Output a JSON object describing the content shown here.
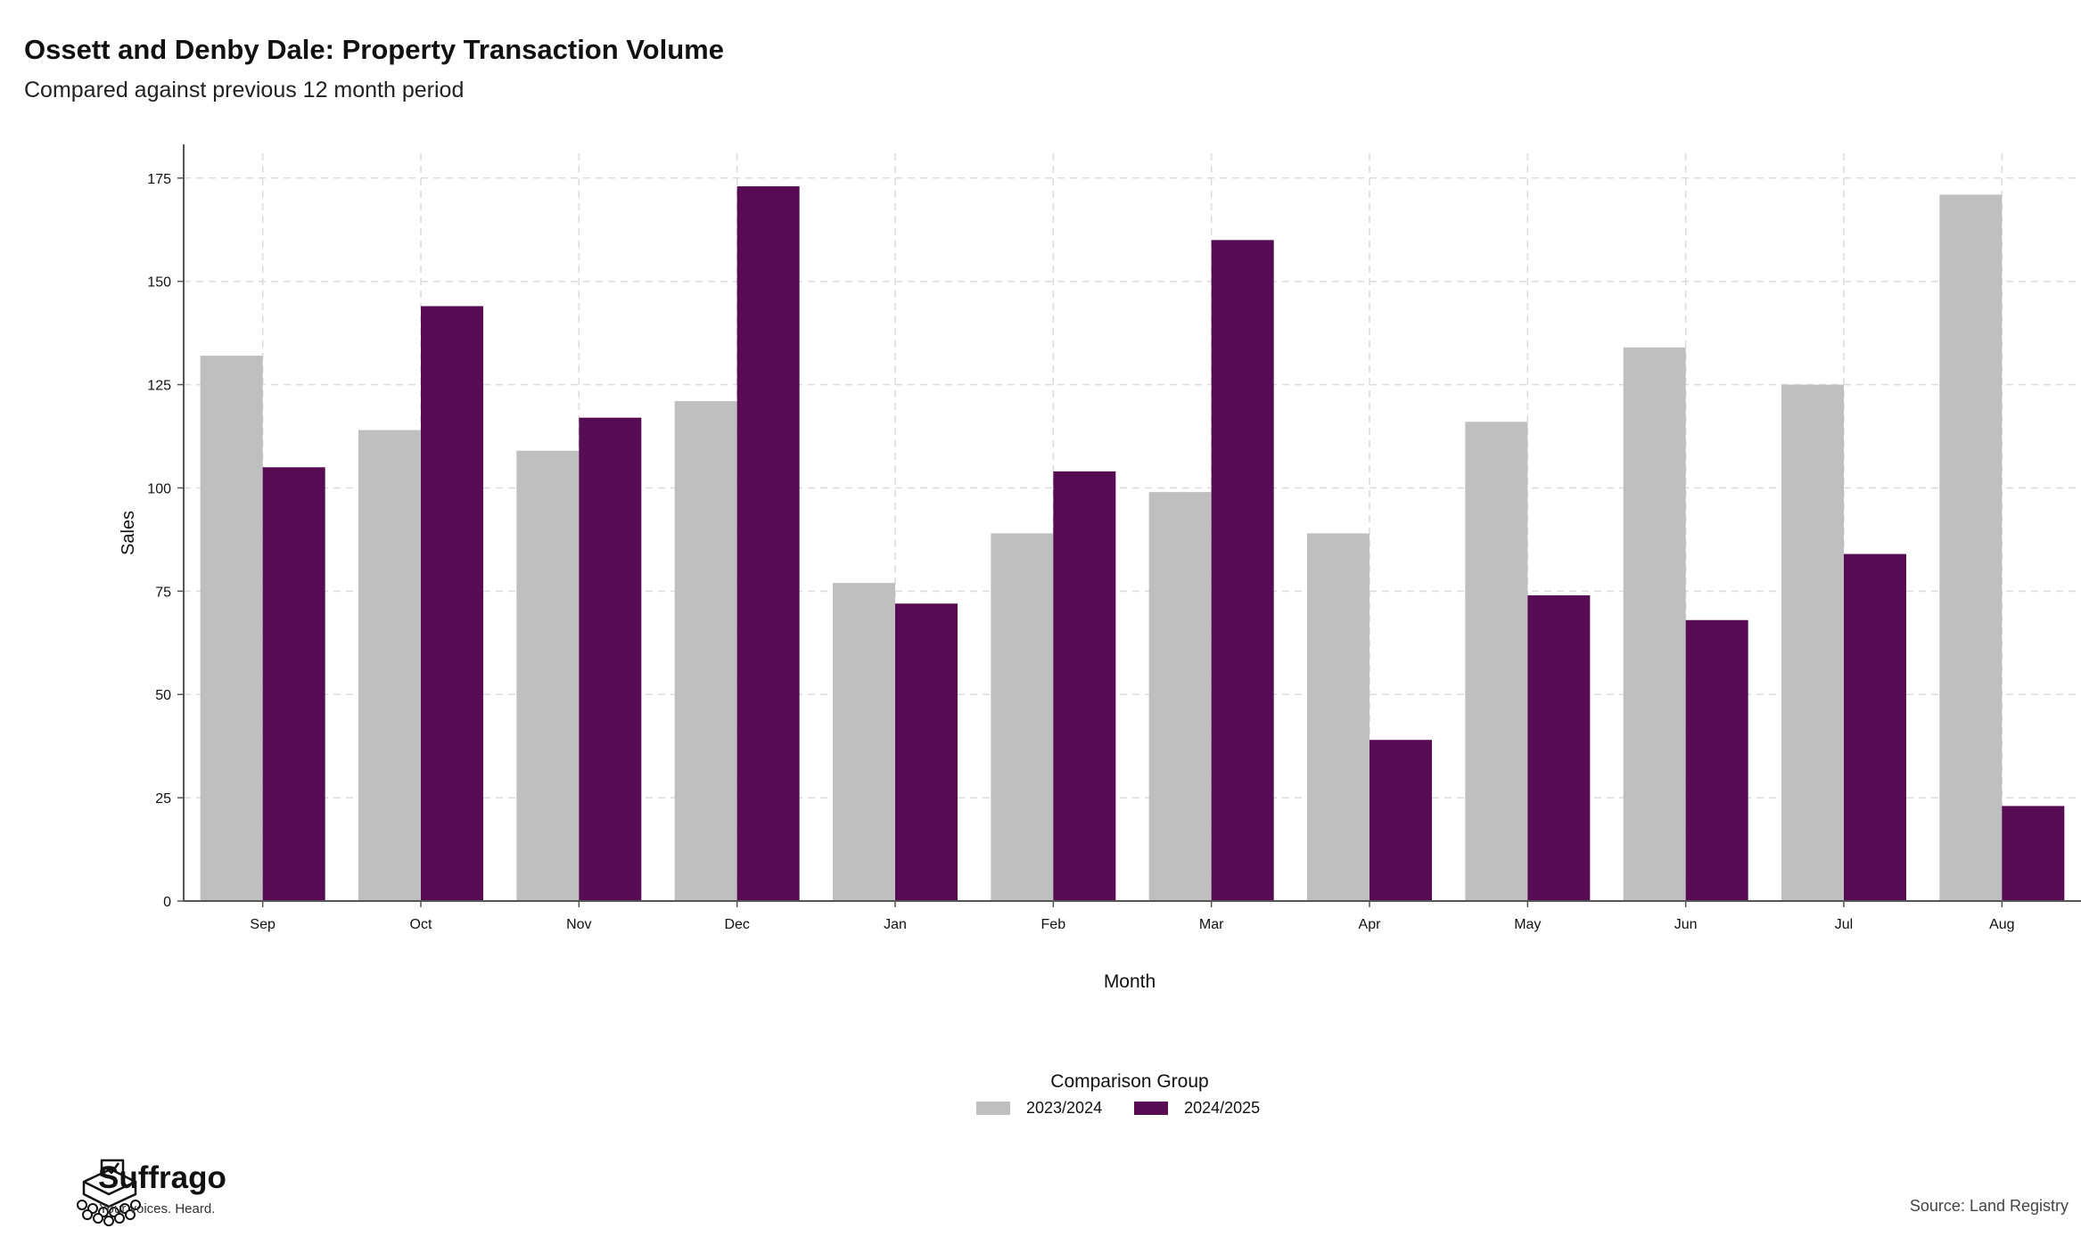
{
  "header": {
    "title": "Ossett and Denby Dale: Property Transaction Volume",
    "subtitle": "Compared against previous 12 month period"
  },
  "legend": {
    "title": "Comparison Group",
    "items": [
      {
        "label": "2023/2024",
        "color": "#bfbfbf"
      },
      {
        "label": "2024/2025",
        "color": "#560b52"
      }
    ]
  },
  "branding": {
    "name": "Suffrago",
    "tagline": "Your voices. Heard.",
    "icon": "ballot-box-icon"
  },
  "source": "Source: Land Registry",
  "chart_data": {
    "type": "bar",
    "title": "Ossett and Denby Dale: Property Transaction Volume",
    "subtitle": "Compared against previous 12 month period",
    "xlabel": "Month",
    "ylabel": "Sales",
    "categories": [
      "Sep",
      "Oct",
      "Nov",
      "Dec",
      "Jan",
      "Feb",
      "Mar",
      "Apr",
      "May",
      "Jun",
      "Jul",
      "Aug"
    ],
    "series": [
      {
        "name": "2023/2024",
        "color": "#bfbfbf",
        "values": [
          132,
          114,
          109,
          121,
          77,
          89,
          99,
          89,
          116,
          134,
          125,
          171
        ]
      },
      {
        "name": "2024/2025",
        "color": "#560b52",
        "values": [
          105,
          144,
          117,
          173,
          72,
          104,
          160,
          39,
          74,
          68,
          84,
          23
        ]
      }
    ],
    "ylim": [
      0,
      181
    ],
    "yticks": [
      0,
      25,
      50,
      75,
      100,
      125,
      150,
      175
    ],
    "grid": true,
    "legend_position": "bottom"
  }
}
